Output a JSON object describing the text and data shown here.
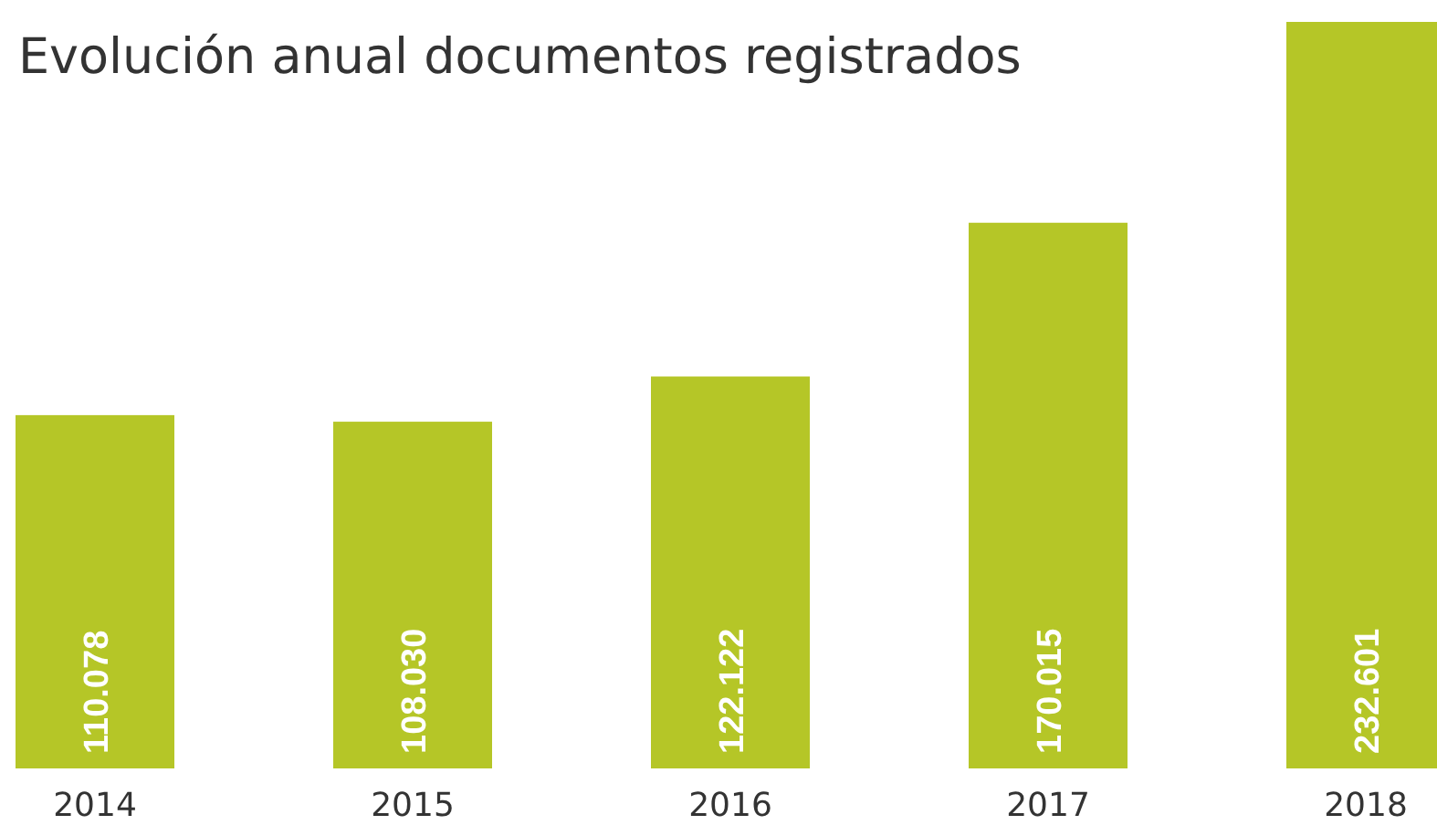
{
  "chart_data": {
    "type": "bar",
    "title": "Evolución anual documentos registrados",
    "categories": [
      "2014",
      "2015",
      "2016",
      "2017",
      "2018"
    ],
    "values": [
      110078,
      108030,
      122122,
      170015,
      232601
    ],
    "value_labels": [
      "110.078",
      "108.030",
      "122.122",
      "170.015",
      "232.601"
    ],
    "color": "#b5c627",
    "tick_labels": "x"
  }
}
